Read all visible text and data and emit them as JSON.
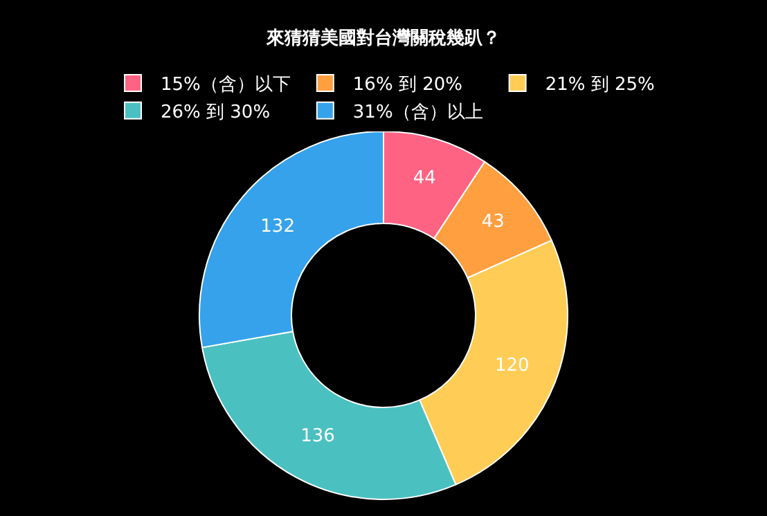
{
  "chart_data": {
    "type": "donut",
    "title": "來猜猜美國對台灣關稅幾趴？",
    "categories": [
      "15%（含）以下",
      "16% 到 20%",
      "21% 到 25%",
      "26% 到 30%",
      "31%（含）以上"
    ],
    "values": [
      44,
      43,
      120,
      136,
      132
    ],
    "colors": [
      "#ff6384",
      "#ff9f40",
      "#ffcd56",
      "#4bc0c0",
      "#36a2eb"
    ],
    "data_labels": true,
    "legend": "top"
  }
}
